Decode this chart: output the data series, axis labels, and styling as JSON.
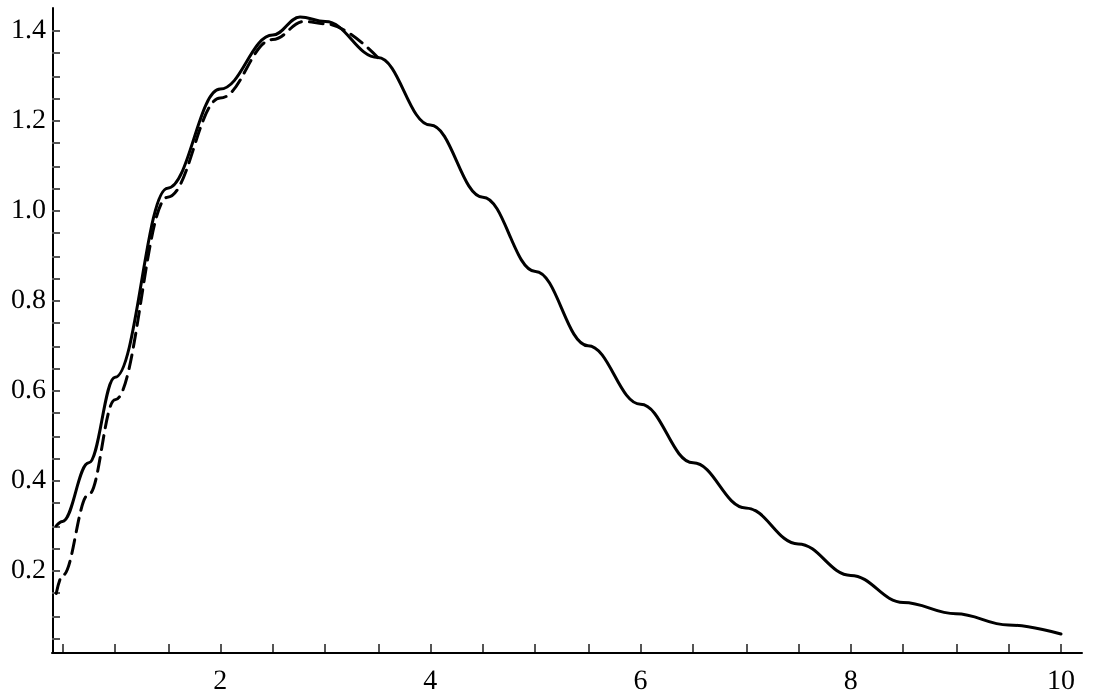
{
  "chart_data": {
    "type": "line",
    "xlim": [
      0.4,
      10.2
    ],
    "ylim": [
      0.02,
      1.45
    ],
    "xticks": [
      {
        "value": 0.5,
        "label": null
      },
      {
        "value": 1,
        "label": null
      },
      {
        "value": 1.5,
        "label": null
      },
      2,
      {
        "value": 2.5,
        "label": null
      },
      {
        "value": 3,
        "label": null
      },
      {
        "value": 3.5,
        "label": null
      },
      4,
      {
        "value": 4.5,
        "label": null
      },
      {
        "value": 5,
        "label": null
      },
      {
        "value": 5.5,
        "label": null
      },
      6,
      {
        "value": 6.5,
        "label": null
      },
      {
        "value": 7,
        "label": null
      },
      {
        "value": 7.5,
        "label": null
      },
      8,
      {
        "value": 8.5,
        "label": null
      },
      {
        "value": 9,
        "label": null
      },
      {
        "value": 9.5,
        "label": null
      },
      10
    ],
    "yticks": [
      {
        "value": 0.05,
        "label": null
      },
      {
        "value": 0.1,
        "label": null
      },
      {
        "value": 0.15,
        "label": null
      },
      0.2,
      {
        "value": 0.25,
        "label": null
      },
      {
        "value": 0.3,
        "label": null
      },
      {
        "value": 0.35,
        "label": null
      },
      0.4,
      {
        "value": 0.45,
        "label": null
      },
      {
        "value": 0.5,
        "label": null
      },
      {
        "value": 0.55,
        "label": null
      },
      0.6,
      {
        "value": 0.65,
        "label": null
      },
      {
        "value": 0.7,
        "label": null
      },
      {
        "value": 0.75,
        "label": null
      },
      0.8,
      {
        "value": 0.85,
        "label": null
      },
      {
        "value": 0.9,
        "label": null
      },
      {
        "value": 0.95,
        "label": null
      },
      {
        "value": 1,
        "label": "1.0"
      },
      {
        "value": 1.05,
        "label": null
      },
      {
        "value": 1.1,
        "label": null
      },
      {
        "value": 1.15,
        "label": null
      },
      1.2,
      {
        "value": 1.25,
        "label": null
      },
      {
        "value": 1.3,
        "label": null
      },
      {
        "value": 1.35,
        "label": null
      },
      1.4
    ],
    "grid": false,
    "marker": "none",
    "series": [
      {
        "color": "#000000",
        "line_style": "solid",
        "x": [
          0.44,
          0.5,
          0.75,
          1,
          1.5,
          2,
          2.5,
          2.76,
          3,
          3.5,
          4,
          4.5,
          5,
          5.5,
          6,
          6.5,
          7,
          7.5,
          8,
          8.5,
          9,
          9.5,
          10
        ],
        "values": [
          0.3,
          0.31,
          0.44,
          0.63,
          1.05,
          1.27,
          1.39,
          1.43,
          1.42,
          1.34,
          1.19,
          1.03,
          0.865,
          0.7,
          0.57,
          0.44,
          0.34,
          0.26,
          0.19,
          0.13,
          0.105,
          0.08,
          0.06
        ]
      },
      {
        "color": "#000000",
        "line_style": "dashed",
        "x": [
          0.44,
          0.5,
          0.75,
          1,
          1.5,
          2,
          2.5,
          2.8,
          3,
          3.5
        ],
        "values": [
          0.15,
          0.19,
          0.37,
          0.58,
          1.03,
          1.25,
          1.38,
          1.42,
          1.415,
          1.34
        ]
      }
    ]
  }
}
